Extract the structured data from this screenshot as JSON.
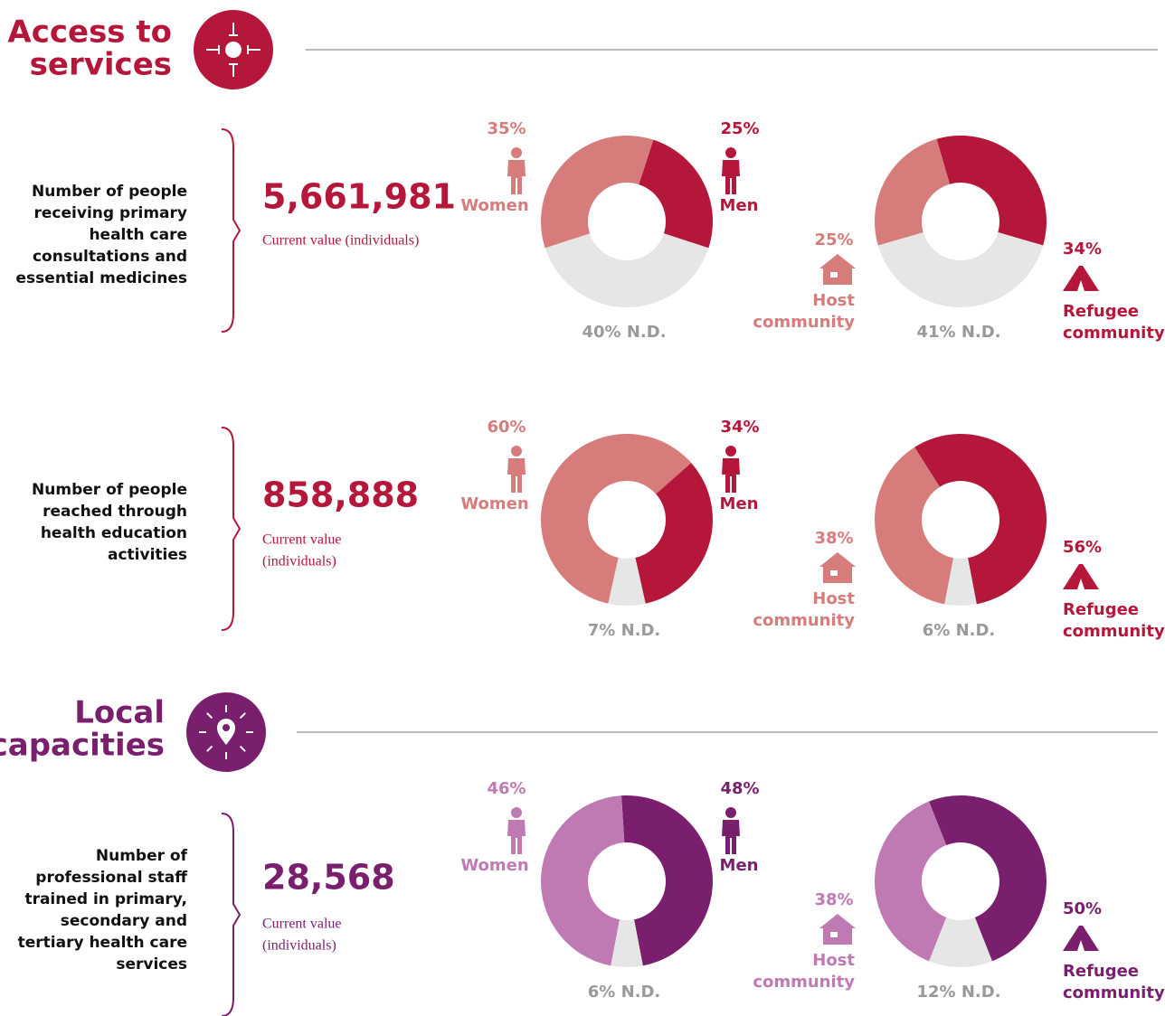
{
  "sections": [
    {
      "title": [
        "Access to",
        "services"
      ],
      "color": "#b5173a",
      "indicators": [
        {
          "label": [
            "Number of people",
            "receiving primary",
            "health care",
            "consultations and",
            "essential medicines"
          ],
          "value": "5,661,981",
          "caption": [
            "Current value (individuals)"
          ]
        },
        {
          "label": [
            "Number of people",
            "reached through",
            "health education",
            "activities"
          ],
          "value": "858,888",
          "caption": [
            "Current value",
            "(individuals)"
          ]
        }
      ]
    },
    {
      "title": [
        "Local",
        "capacities"
      ],
      "color": "#7a1f6e",
      "indicators": [
        {
          "label": [
            "Number of",
            "professional staff",
            "trained in primary,",
            "secondary and",
            "tertiary health care",
            "services"
          ],
          "value": "28,568",
          "caption": [
            "Current value",
            "(individuals)"
          ]
        }
      ]
    }
  ],
  "chart_data": [
    {
      "type": "donut",
      "categories": [
        [
          "Women"
        ],
        [
          "Men"
        ],
        [
          "N.D."
        ]
      ],
      "values": [
        35,
        25,
        40
      ],
      "value_labels": [
        "35%",
        "25%",
        "40%"
      ],
      "colors": [
        "#d67c7b",
        "#b5173a",
        "#e6e6e6"
      ]
    },
    {
      "type": "donut",
      "categories": [
        [
          "Host",
          "community"
        ],
        [
          "Refugee",
          "community"
        ],
        [
          "N.D."
        ]
      ],
      "values": [
        25,
        34,
        41
      ],
      "value_labels": [
        "25%",
        "34%",
        "41%"
      ],
      "colors": [
        "#d67c7b",
        "#b5173a",
        "#e6e6e6"
      ]
    },
    {
      "type": "donut",
      "categories": [
        [
          "Women"
        ],
        [
          "Men"
        ],
        [
          "N.D."
        ]
      ],
      "values": [
        60,
        34,
        7
      ],
      "value_labels": [
        "60%",
        "34%",
        "7%"
      ],
      "colors": [
        "#d67c7b",
        "#b5173a",
        "#e6e6e6"
      ]
    },
    {
      "type": "donut",
      "categories": [
        [
          "Host",
          "community"
        ],
        [
          "Refugee",
          "community"
        ],
        [
          "N.D."
        ]
      ],
      "values": [
        38,
        56,
        6
      ],
      "value_labels": [
        "38%",
        "56%",
        "6%"
      ],
      "colors": [
        "#d67c7b",
        "#b5173a",
        "#e6e6e6"
      ]
    },
    {
      "type": "donut",
      "categories": [
        [
          "Women"
        ],
        [
          "Men"
        ],
        [
          "N.D."
        ]
      ],
      "values": [
        46,
        48,
        6
      ],
      "value_labels": [
        "46%",
        "48%",
        "6%"
      ],
      "colors": [
        "#c07ab3",
        "#7a1f6e",
        "#e6e6e6"
      ]
    },
    {
      "type": "donut",
      "categories": [
        [
          "Host",
          "community"
        ],
        [
          "Refugee",
          "community"
        ],
        [
          "N.D."
        ]
      ],
      "values": [
        38,
        50,
        12
      ],
      "value_labels": [
        "38%",
        "50%",
        "12%"
      ],
      "colors": [
        "#c07ab3",
        "#7a1f6e",
        "#e6e6e6"
      ]
    }
  ]
}
